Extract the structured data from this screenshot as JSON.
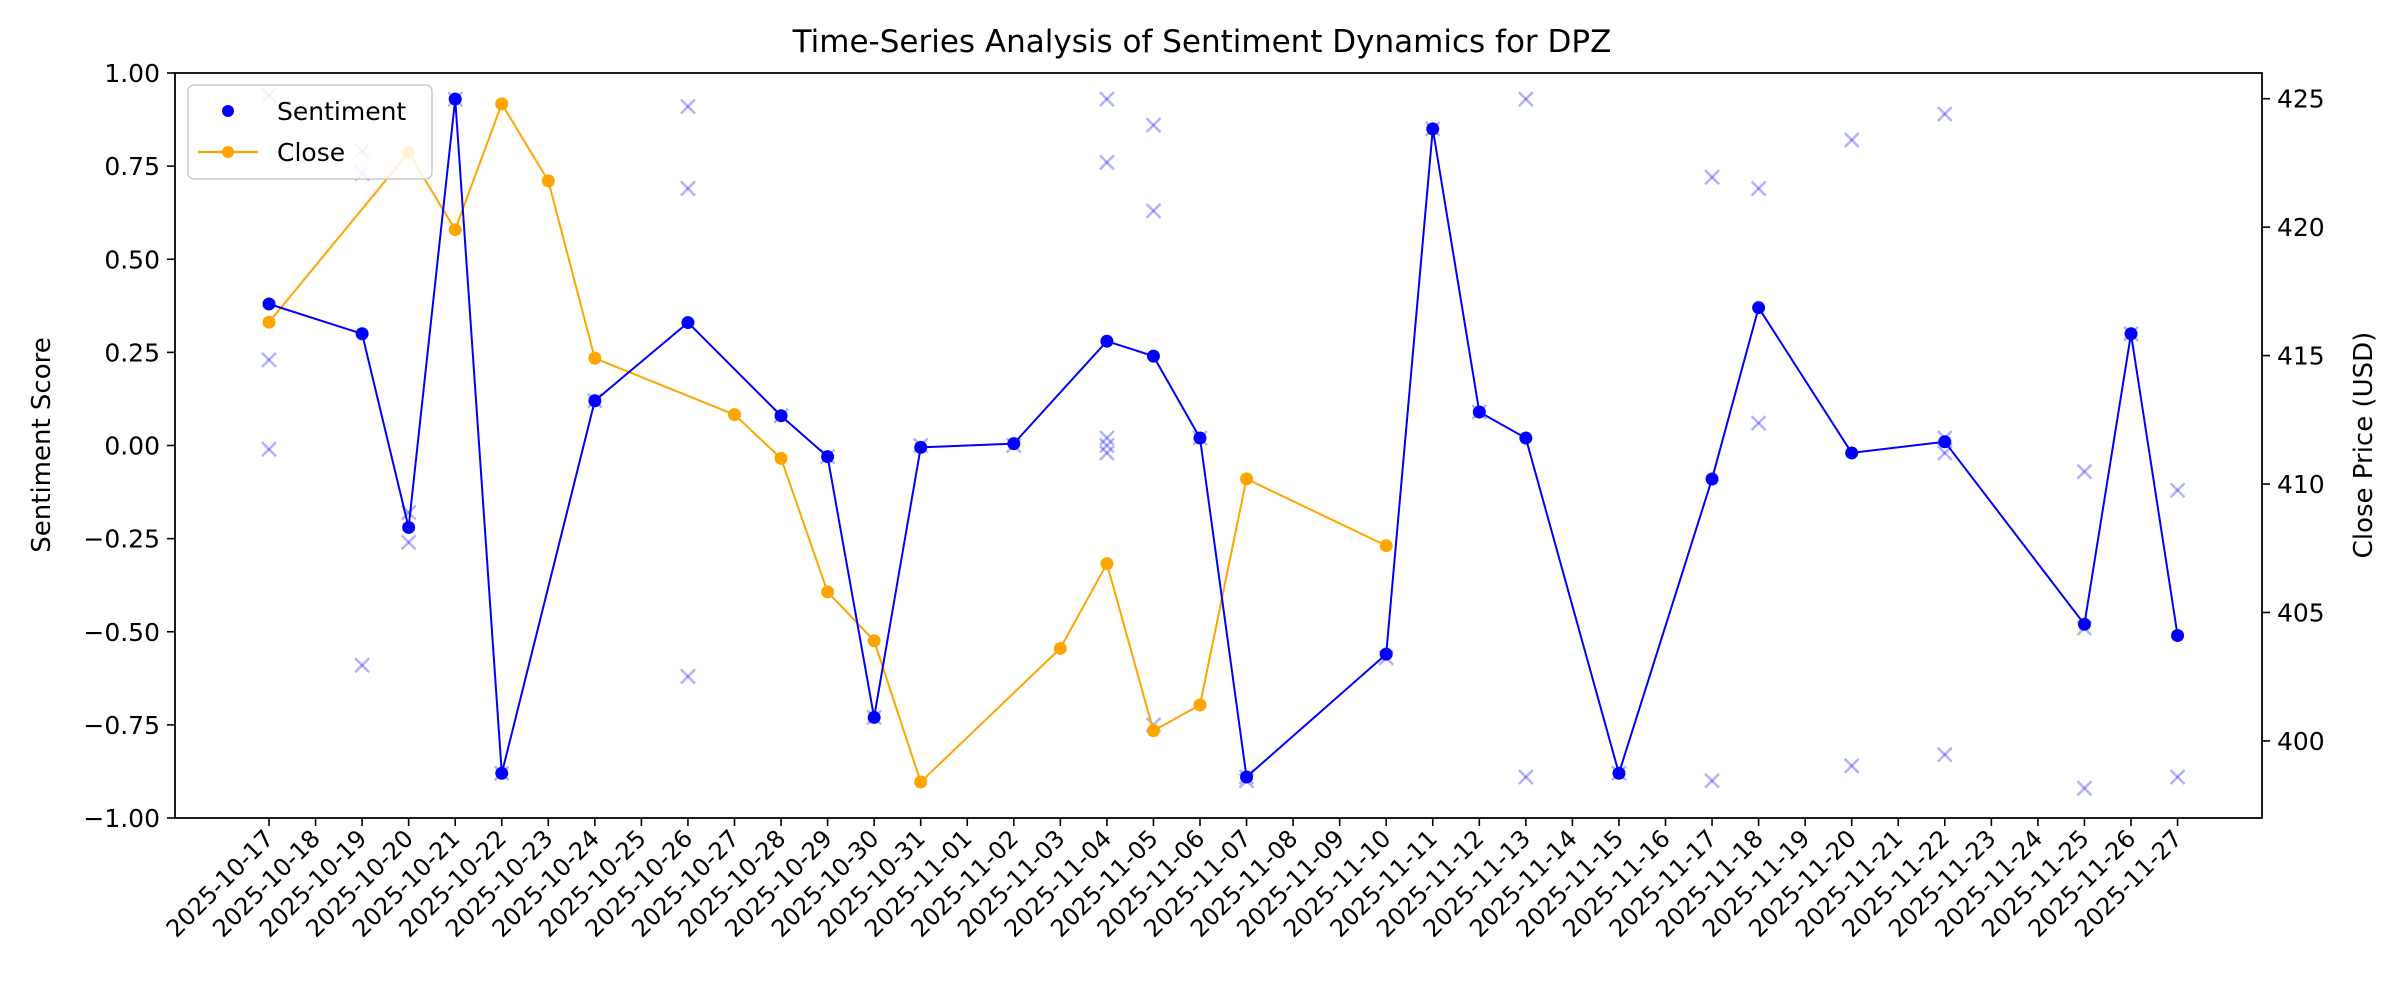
{
  "chart_data": {
    "type": "line",
    "title": "Time-Series Analysis of Sentiment Dynamics for DPZ",
    "ylabel": "Sentiment Score",
    "ylabel_right": "Close Price (USD)",
    "ylim": [
      -1.0,
      1.0
    ],
    "ylim_right": [
      397,
      426
    ],
    "yticks": [
      "−1.00",
      "−0.75",
      "−0.50",
      "−0.25",
      "0.00",
      "0.25",
      "0.50",
      "0.75",
      "1.00"
    ],
    "yticks_right": [
      "400",
      "405",
      "410",
      "415",
      "420",
      "425"
    ],
    "x_dates": [
      "2025-10-17",
      "2025-10-18",
      "2025-10-19",
      "2025-10-20",
      "2025-10-21",
      "2025-10-22",
      "2025-10-23",
      "2025-10-24",
      "2025-10-25",
      "2025-10-26",
      "2025-10-27",
      "2025-10-28",
      "2025-10-29",
      "2025-10-30",
      "2025-10-31",
      "2025-11-01",
      "2025-11-02",
      "2025-11-03",
      "2025-11-04",
      "2025-11-05",
      "2025-11-06",
      "2025-11-07",
      "2025-11-08",
      "2025-11-09",
      "2025-11-10",
      "2025-11-11",
      "2025-11-12",
      "2025-11-13",
      "2025-11-14",
      "2025-11-15",
      "2025-11-16",
      "2025-11-17",
      "2025-11-18",
      "2025-11-19",
      "2025-11-20",
      "2025-11-21",
      "2025-11-22",
      "2025-11-23",
      "2025-11-24",
      "2025-11-25",
      "2025-11-26",
      "2025-11-27"
    ],
    "legend_position": "upper-left",
    "grid": false,
    "colors": {
      "sentiment": "#0000ff",
      "close": "#ffa500",
      "raw": "#0000ff"
    },
    "series": [
      {
        "name": "Sentiment",
        "axis": "left",
        "points": [
          {
            "x": "2025-10-17",
            "y": 0.38
          },
          {
            "x": "2025-10-19",
            "y": 0.3
          },
          {
            "x": "2025-10-20",
            "y": -0.22
          },
          {
            "x": "2025-10-21",
            "y": 0.93
          },
          {
            "x": "2025-10-22",
            "y": -0.88
          },
          {
            "x": "2025-10-24",
            "y": 0.12
          },
          {
            "x": "2025-10-26",
            "y": 0.33
          },
          {
            "x": "2025-10-28",
            "y": 0.08
          },
          {
            "x": "2025-10-29",
            "y": -0.03
          },
          {
            "x": "2025-10-30",
            "y": -0.73
          },
          {
            "x": "2025-10-31",
            "y": -0.005
          },
          {
            "x": "2025-11-02",
            "y": 0.005
          },
          {
            "x": "2025-11-04",
            "y": 0.28
          },
          {
            "x": "2025-11-05",
            "y": 0.24
          },
          {
            "x": "2025-11-06",
            "y": 0.02
          },
          {
            "x": "2025-11-07",
            "y": -0.89
          },
          {
            "x": "2025-11-10",
            "y": -0.56
          },
          {
            "x": "2025-11-11",
            "y": 0.85
          },
          {
            "x": "2025-11-12",
            "y": 0.09
          },
          {
            "x": "2025-11-13",
            "y": 0.02
          },
          {
            "x": "2025-11-15",
            "y": -0.88
          },
          {
            "x": "2025-11-17",
            "y": -0.09
          },
          {
            "x": "2025-11-18",
            "y": 0.37
          },
          {
            "x": "2025-11-20",
            "y": -0.02
          },
          {
            "x": "2025-11-22",
            "y": 0.01
          },
          {
            "x": "2025-11-25",
            "y": -0.48
          },
          {
            "x": "2025-11-26",
            "y": 0.3
          },
          {
            "x": "2025-11-27",
            "y": -0.51
          }
        ]
      },
      {
        "name": "Close",
        "axis": "right",
        "points": [
          {
            "x": "2025-10-17",
            "y": 416.3
          },
          {
            "x": "2025-10-20",
            "y": 422.9
          },
          {
            "x": "2025-10-21",
            "y": 419.9
          },
          {
            "x": "2025-10-22",
            "y": 424.8
          },
          {
            "x": "2025-10-23",
            "y": 421.8
          },
          {
            "x": "2025-10-24",
            "y": 414.9
          },
          {
            "x": "2025-10-27",
            "y": 412.7
          },
          {
            "x": "2025-10-28",
            "y": 411.0
          },
          {
            "x": "2025-10-29",
            "y": 405.8
          },
          {
            "x": "2025-10-30",
            "y": 403.9
          },
          {
            "x": "2025-10-31",
            "y": 398.4
          },
          {
            "x": "2025-11-03",
            "y": 403.6
          },
          {
            "x": "2025-11-04",
            "y": 406.9
          },
          {
            "x": "2025-11-05",
            "y": 400.4
          },
          {
            "x": "2025-11-06",
            "y": 401.4
          },
          {
            "x": "2025-11-07",
            "y": 410.2
          },
          {
            "x": "2025-11-10",
            "y": 407.6
          }
        ]
      },
      {
        "name": "",
        "axis": "left",
        "marker": "x",
        "points": [
          {
            "x": "2025-10-17",
            "y": 0.94
          },
          {
            "x": "2025-10-17",
            "y": 0.23
          },
          {
            "x": "2025-10-17",
            "y": -0.01
          },
          {
            "x": "2025-10-19",
            "y": 0.79
          },
          {
            "x": "2025-10-19",
            "y": 0.73
          },
          {
            "x": "2025-10-19",
            "y": -0.59
          },
          {
            "x": "2025-10-20",
            "y": -0.18
          },
          {
            "x": "2025-10-20",
            "y": -0.26
          },
          {
            "x": "2025-10-21",
            "y": 0.93
          },
          {
            "x": "2025-10-22",
            "y": -0.88
          },
          {
            "x": "2025-10-24",
            "y": 0.12
          },
          {
            "x": "2025-10-26",
            "y": 0.91
          },
          {
            "x": "2025-10-26",
            "y": 0.69
          },
          {
            "x": "2025-10-26",
            "y": -0.62
          },
          {
            "x": "2025-10-28",
            "y": 0.08
          },
          {
            "x": "2025-10-29",
            "y": -0.03
          },
          {
            "x": "2025-10-30",
            "y": -0.73
          },
          {
            "x": "2025-10-31",
            "y": 0.0
          },
          {
            "x": "2025-11-02",
            "y": 0.0
          },
          {
            "x": "2025-11-04",
            "y": 0.93
          },
          {
            "x": "2025-11-04",
            "y": 0.76
          },
          {
            "x": "2025-11-04",
            "y": 0.02
          },
          {
            "x": "2025-11-04",
            "y": 0.0
          },
          {
            "x": "2025-11-04",
            "y": -0.02
          },
          {
            "x": "2025-11-05",
            "y": 0.86
          },
          {
            "x": "2025-11-05",
            "y": 0.63
          },
          {
            "x": "2025-11-05",
            "y": -0.75
          },
          {
            "x": "2025-11-06",
            "y": 0.02
          },
          {
            "x": "2025-11-07",
            "y": -0.89
          },
          {
            "x": "2025-11-07",
            "y": -0.9
          },
          {
            "x": "2025-11-10",
            "y": -0.57
          },
          {
            "x": "2025-11-11",
            "y": 0.85
          },
          {
            "x": "2025-11-12",
            "y": 0.09
          },
          {
            "x": "2025-11-13",
            "y": 0.93
          },
          {
            "x": "2025-11-13",
            "y": -0.89
          },
          {
            "x": "2025-11-15",
            "y": -0.88
          },
          {
            "x": "2025-11-17",
            "y": 0.72
          },
          {
            "x": "2025-11-17",
            "y": -0.9
          },
          {
            "x": "2025-11-18",
            "y": 0.69
          },
          {
            "x": "2025-11-18",
            "y": 0.06
          },
          {
            "x": "2025-11-20",
            "y": 0.82
          },
          {
            "x": "2025-11-20",
            "y": -0.86
          },
          {
            "x": "2025-11-22",
            "y": 0.89
          },
          {
            "x": "2025-11-22",
            "y": 0.02
          },
          {
            "x": "2025-11-22",
            "y": -0.02
          },
          {
            "x": "2025-11-22",
            "y": -0.83
          },
          {
            "x": "2025-11-25",
            "y": -0.07
          },
          {
            "x": "2025-11-25",
            "y": -0.49
          },
          {
            "x": "2025-11-25",
            "y": -0.92
          },
          {
            "x": "2025-11-26",
            "y": 0.3
          },
          {
            "x": "2025-11-27",
            "y": -0.12
          },
          {
            "x": "2025-11-27",
            "y": -0.89
          }
        ]
      }
    ]
  }
}
